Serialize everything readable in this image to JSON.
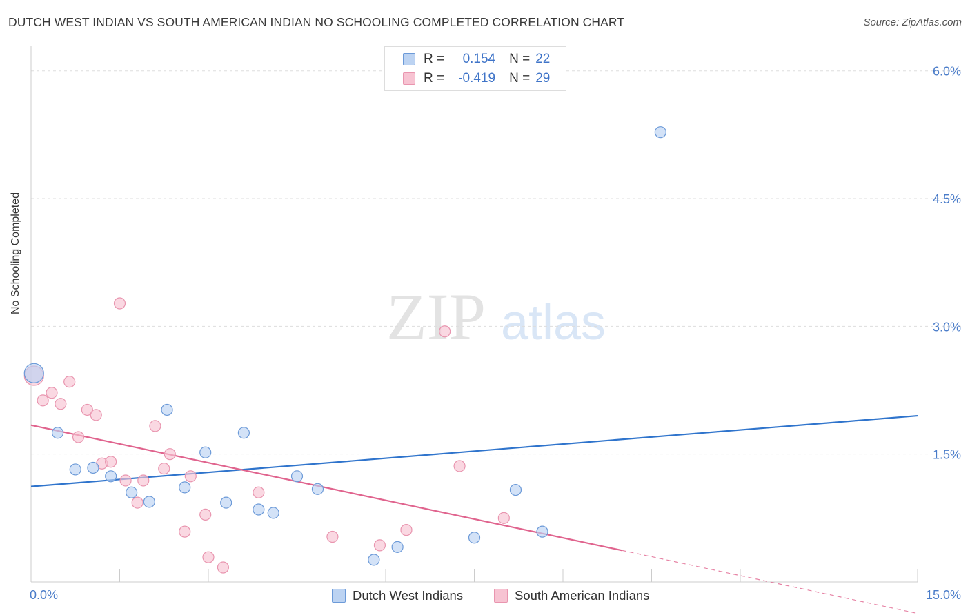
{
  "header": {
    "title": "DUTCH WEST INDIAN VS SOUTH AMERICAN INDIAN NO SCHOOLING COMPLETED CORRELATION CHART",
    "source": "Source: ZipAtlas.com"
  },
  "watermark": {
    "zip": "ZIP",
    "atlas": "atlas"
  },
  "colors": {
    "blue_fill": "#bcd3f2",
    "blue_stroke": "#6c9ad8",
    "blue_line": "#2f74cc",
    "pink_fill": "#f7c3d2",
    "pink_stroke": "#e995af",
    "pink_line": "#e0648e",
    "tick_text": "#4a7cc9",
    "grid": "#dddddd"
  },
  "legend": {
    "rows": [
      {
        "r_label": "R =",
        "r_value": "0.154",
        "n_label": "N =",
        "n_value": "22"
      },
      {
        "r_label": "R =",
        "r_value": "-0.419",
        "n_label": "N =",
        "n_value": "29"
      }
    ]
  },
  "bottom_legend": [
    {
      "label": "Dutch West Indians"
    },
    {
      "label": "South American Indians"
    }
  ],
  "chart_data": {
    "type": "scatter",
    "title": "DUTCH WEST INDIAN VS SOUTH AMERICAN INDIAN NO SCHOOLING COMPLETED CORRELATION CHART",
    "xlabel": "",
    "ylabel": "No Schooling Completed",
    "xlim": [
      0,
      15
    ],
    "ylim": [
      0,
      6.2
    ],
    "x_tick_labels": [
      "0.0%",
      "15.0%"
    ],
    "y_ticks": [
      1.5,
      3.0,
      4.5,
      6.0
    ],
    "y_tick_labels": [
      "1.5%",
      "3.0%",
      "4.5%",
      "6.0%"
    ],
    "grid": "horizontal dashed",
    "legend_position": "top-center",
    "series": [
      {
        "name": "Dutch West Indians",
        "R": 0.154,
        "N": 22,
        "points": [
          [
            0.05,
            2.45
          ],
          [
            0.45,
            1.75
          ],
          [
            0.75,
            1.32
          ],
          [
            1.05,
            1.34
          ],
          [
            1.35,
            1.24
          ],
          [
            1.7,
            1.05
          ],
          [
            2.0,
            0.94
          ],
          [
            2.3,
            2.02
          ],
          [
            2.6,
            1.11
          ],
          [
            2.95,
            1.52
          ],
          [
            3.3,
            0.93
          ],
          [
            3.6,
            1.75
          ],
          [
            3.85,
            0.85
          ],
          [
            4.1,
            0.81
          ],
          [
            4.5,
            1.24
          ],
          [
            4.85,
            1.09
          ],
          [
            5.8,
            0.26
          ],
          [
            6.2,
            0.41
          ],
          [
            7.5,
            0.52
          ],
          [
            8.2,
            1.08
          ],
          [
            8.65,
            0.59
          ],
          [
            10.65,
            5.28
          ]
        ],
        "trend": {
          "x": [
            0,
            15
          ],
          "y": [
            1.12,
            1.95
          ]
        }
      },
      {
        "name": "South American Indians",
        "R": -0.419,
        "N": 29,
        "points": [
          [
            0.05,
            2.42
          ],
          [
            0.2,
            2.13
          ],
          [
            0.35,
            2.22
          ],
          [
            0.5,
            2.09
          ],
          [
            0.65,
            2.35
          ],
          [
            0.8,
            1.7
          ],
          [
            0.95,
            2.02
          ],
          [
            1.1,
            1.96
          ],
          [
            1.2,
            1.39
          ],
          [
            1.35,
            1.41
          ],
          [
            1.5,
            3.27
          ],
          [
            1.6,
            1.19
          ],
          [
            1.8,
            0.93
          ],
          [
            1.9,
            1.19
          ],
          [
            2.1,
            1.83
          ],
          [
            2.25,
            1.33
          ],
          [
            2.35,
            1.5
          ],
          [
            2.6,
            0.59
          ],
          [
            2.7,
            1.24
          ],
          [
            2.95,
            0.79
          ],
          [
            3.0,
            0.29
          ],
          [
            3.25,
            0.17
          ],
          [
            3.85,
            1.05
          ],
          [
            5.1,
            0.53
          ],
          [
            5.9,
            0.43
          ],
          [
            6.35,
            0.61
          ],
          [
            7.0,
            2.94
          ],
          [
            7.25,
            1.36
          ],
          [
            8.0,
            0.75
          ]
        ],
        "trend": {
          "x": [
            0,
            10.0
          ],
          "y": [
            1.84,
            0.37
          ]
        },
        "trend_extension_dashed": {
          "x": [
            10.0,
            15.0
          ],
          "y": [
            0.37,
            -0.37
          ]
        }
      }
    ]
  }
}
